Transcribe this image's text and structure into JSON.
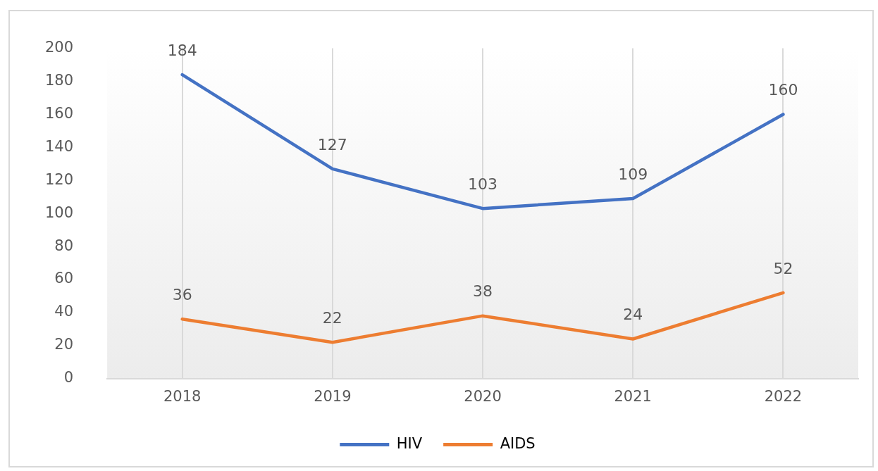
{
  "chart_data": {
    "type": "line",
    "categories": [
      "2018",
      "2019",
      "2020",
      "2021",
      "2022"
    ],
    "series": [
      {
        "name": "HIV",
        "color": "#4472c4",
        "values": [
          184,
          127,
          103,
          109,
          160
        ]
      },
      {
        "name": "AIDS",
        "color": "#ed7d31",
        "values": [
          36,
          22,
          38,
          24,
          52
        ]
      }
    ],
    "ylim": [
      0,
      200
    ],
    "yticks": [
      0,
      20,
      40,
      60,
      80,
      100,
      120,
      140,
      160,
      180,
      200
    ],
    "grid": "x",
    "legend": "bottom",
    "data_labels": true,
    "marker": "none",
    "line_style": "solid"
  }
}
